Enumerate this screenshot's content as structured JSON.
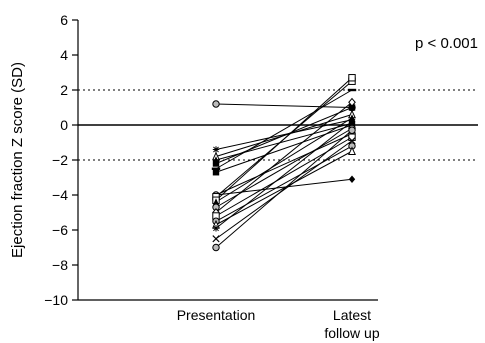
{
  "chart_data": {
    "type": "line",
    "title": "",
    "annotation": "p < 0.001",
    "ylabel": "Ejection fraction Z score (SD)",
    "xlabel": "",
    "categories": [
      "Presentation",
      "Latest follow up"
    ],
    "ylim": [
      -10,
      6
    ],
    "yticks": [
      6,
      4,
      2,
      0,
      -2,
      -4,
      -6,
      -8,
      -10
    ],
    "ytick_labels": [
      "6",
      "4",
      "2",
      "0",
      "−2",
      "−4",
      "−6",
      "−8",
      "−10"
    ],
    "reference_lines": [
      {
        "y": 2,
        "style": "dotted"
      },
      {
        "y": 0,
        "style": "solid"
      },
      {
        "y": -2,
        "style": "dotted"
      }
    ],
    "grid": false,
    "legend": "none",
    "marker_color": "#000000",
    "line_color": "#000000",
    "series": [
      {
        "values": [
          1.2,
          1.0
        ],
        "marker": "circle-open"
      },
      {
        "values": [
          -1.4,
          0.3
        ],
        "marker": "star"
      },
      {
        "values": [
          -1.8,
          0.6
        ],
        "marker": "triangle-open"
      },
      {
        "values": [
          -2.0,
          0.1
        ],
        "marker": "triangle-filled"
      },
      {
        "values": [
          -2.2,
          1.0
        ],
        "marker": "square-filled"
      },
      {
        "values": [
          -2.5,
          2.0
        ],
        "marker": "bar"
      },
      {
        "values": [
          -2.7,
          0.0
        ],
        "marker": "square-filled"
      },
      {
        "values": [
          -4.0,
          -3.1
        ],
        "marker": "diamond-filled"
      },
      {
        "values": [
          -4.0,
          -0.5
        ],
        "marker": "circle-open"
      },
      {
        "values": [
          -4.1,
          2.5
        ],
        "marker": "square-open"
      },
      {
        "values": [
          -4.3,
          2.7
        ],
        "marker": "square-open"
      },
      {
        "values": [
          -4.4,
          0.4
        ],
        "marker": "triangle-filled"
      },
      {
        "values": [
          -4.7,
          -0.2
        ],
        "marker": "circle-open"
      },
      {
        "values": [
          -5.0,
          1.3
        ],
        "marker": "diamond-open"
      },
      {
        "values": [
          -5.2,
          -0.7
        ],
        "marker": "square-open"
      },
      {
        "values": [
          -5.5,
          -1.2
        ],
        "marker": "circle-open"
      },
      {
        "values": [
          -5.7,
          -1.5
        ],
        "marker": "triangle-open"
      },
      {
        "values": [
          -5.9,
          0.2
        ],
        "marker": "star"
      },
      {
        "values": [
          -6.5,
          -0.9
        ],
        "marker": "cross"
      },
      {
        "values": [
          -7.0,
          -0.3
        ],
        "marker": "circle-open"
      }
    ]
  }
}
